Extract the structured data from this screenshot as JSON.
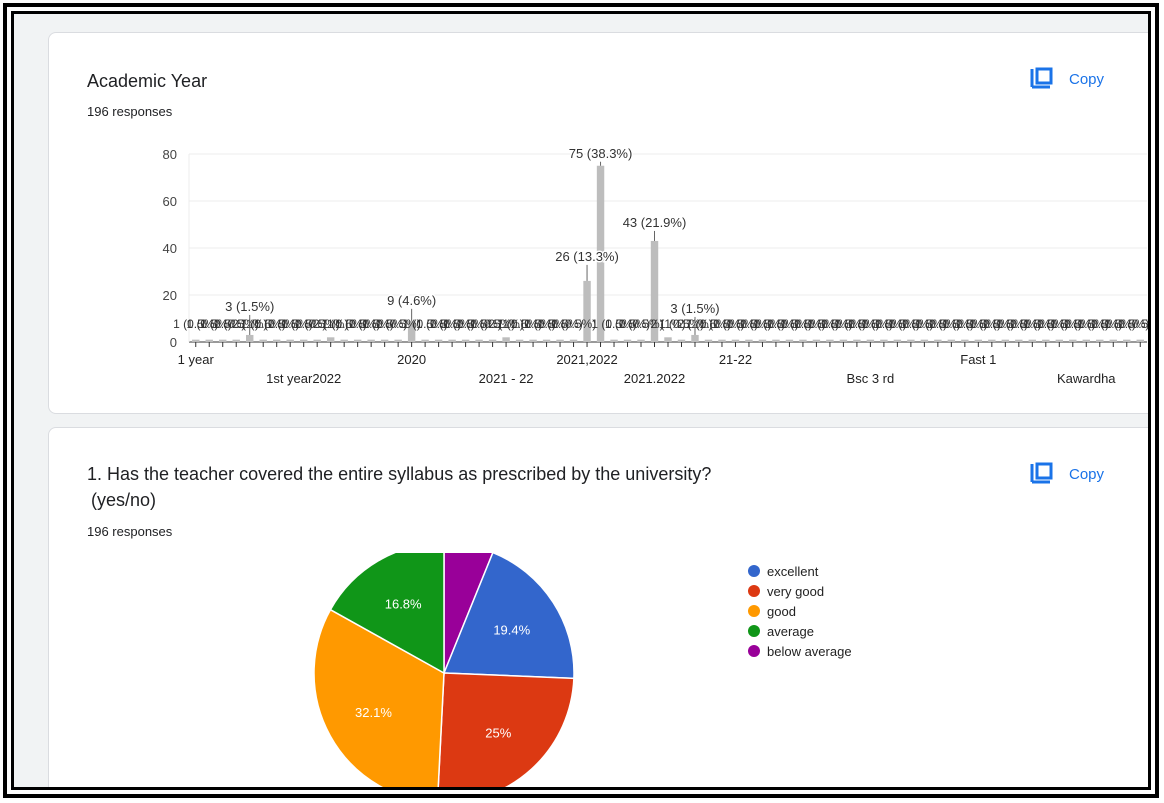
{
  "card1": {
    "title": "Academic Year",
    "responses": "196 responses",
    "copy_label": "Copy",
    "copy_icon": "copy-icon"
  },
  "card2": {
    "title_line1": "1. Has the teacher covered the entire syllabus as prescribed by the university?",
    "title_line2": "(yes/no)",
    "responses": "196 responses",
    "copy_label": "Copy",
    "copy_icon": "copy-icon"
  },
  "chart_data": [
    {
      "type": "bar",
      "bar_color": "#bdbdbd",
      "ylim": [
        0,
        80
      ],
      "yticks": [
        0,
        20,
        40,
        60,
        80
      ],
      "grid": true,
      "x_tick_labels": [
        "1 year",
        "2020",
        "2021,2022",
        "21-22",
        "Fast 1"
      ],
      "x_tick_labels_row2": [
        "1st year2022",
        "2021 - 22",
        "2021.2022",
        "Bsc 3 rd",
        "Kawardha"
      ],
      "values": [
        1,
        1,
        1,
        1,
        3,
        1,
        1,
        1,
        1,
        1,
        2,
        1,
        1,
        1,
        1,
        1,
        9,
        1,
        1,
        1,
        1,
        1,
        1,
        2,
        1,
        1,
        1,
        1,
        1,
        26,
        75,
        1,
        1,
        1,
        43,
        2,
        1,
        3,
        1,
        1,
        1,
        1,
        1,
        1,
        1,
        1,
        1,
        1,
        1,
        1,
        1,
        1,
        1,
        1,
        1,
        1,
        1,
        1,
        1,
        1,
        1,
        1,
        1,
        1,
        1,
        1,
        1,
        1,
        1,
        1,
        1
      ],
      "data_labels": {
        "4": "3 (1.5%)",
        "16": "9 (4.6%)",
        "29": "26 (13.3%)",
        "30": "75 (38.3%)",
        "34": "43 (21.9%)",
        "37": "3 (1.5%)"
      },
      "small_labels": [
        "1 (0.5%)",
        "2 (1%)"
      ]
    },
    {
      "type": "pie",
      "start": "top",
      "direction": "clockwise",
      "slices": [
        {
          "label": "below average",
          "value": 6.1,
          "color": "#990099",
          "text": ""
        },
        {
          "label": "excellent",
          "value": 19.4,
          "color": "#3366cc",
          "text": "19.4%"
        },
        {
          "label": "very good",
          "value": 25,
          "color": "#dc3912",
          "text": "25%"
        },
        {
          "label": "good",
          "value": 32.1,
          "color": "#ff9900",
          "text": "32.1%"
        },
        {
          "label": "average",
          "value": 16.8,
          "color": "#109618",
          "text": "16.8%"
        }
      ],
      "legend": [
        {
          "label": "excellent",
          "color": "#3366cc"
        },
        {
          "label": "very good",
          "color": "#dc3912"
        },
        {
          "label": "good",
          "color": "#ff9900"
        },
        {
          "label": "average",
          "color": "#109618"
        },
        {
          "label": "below average",
          "color": "#990099"
        }
      ],
      "legend_position": "right"
    }
  ]
}
